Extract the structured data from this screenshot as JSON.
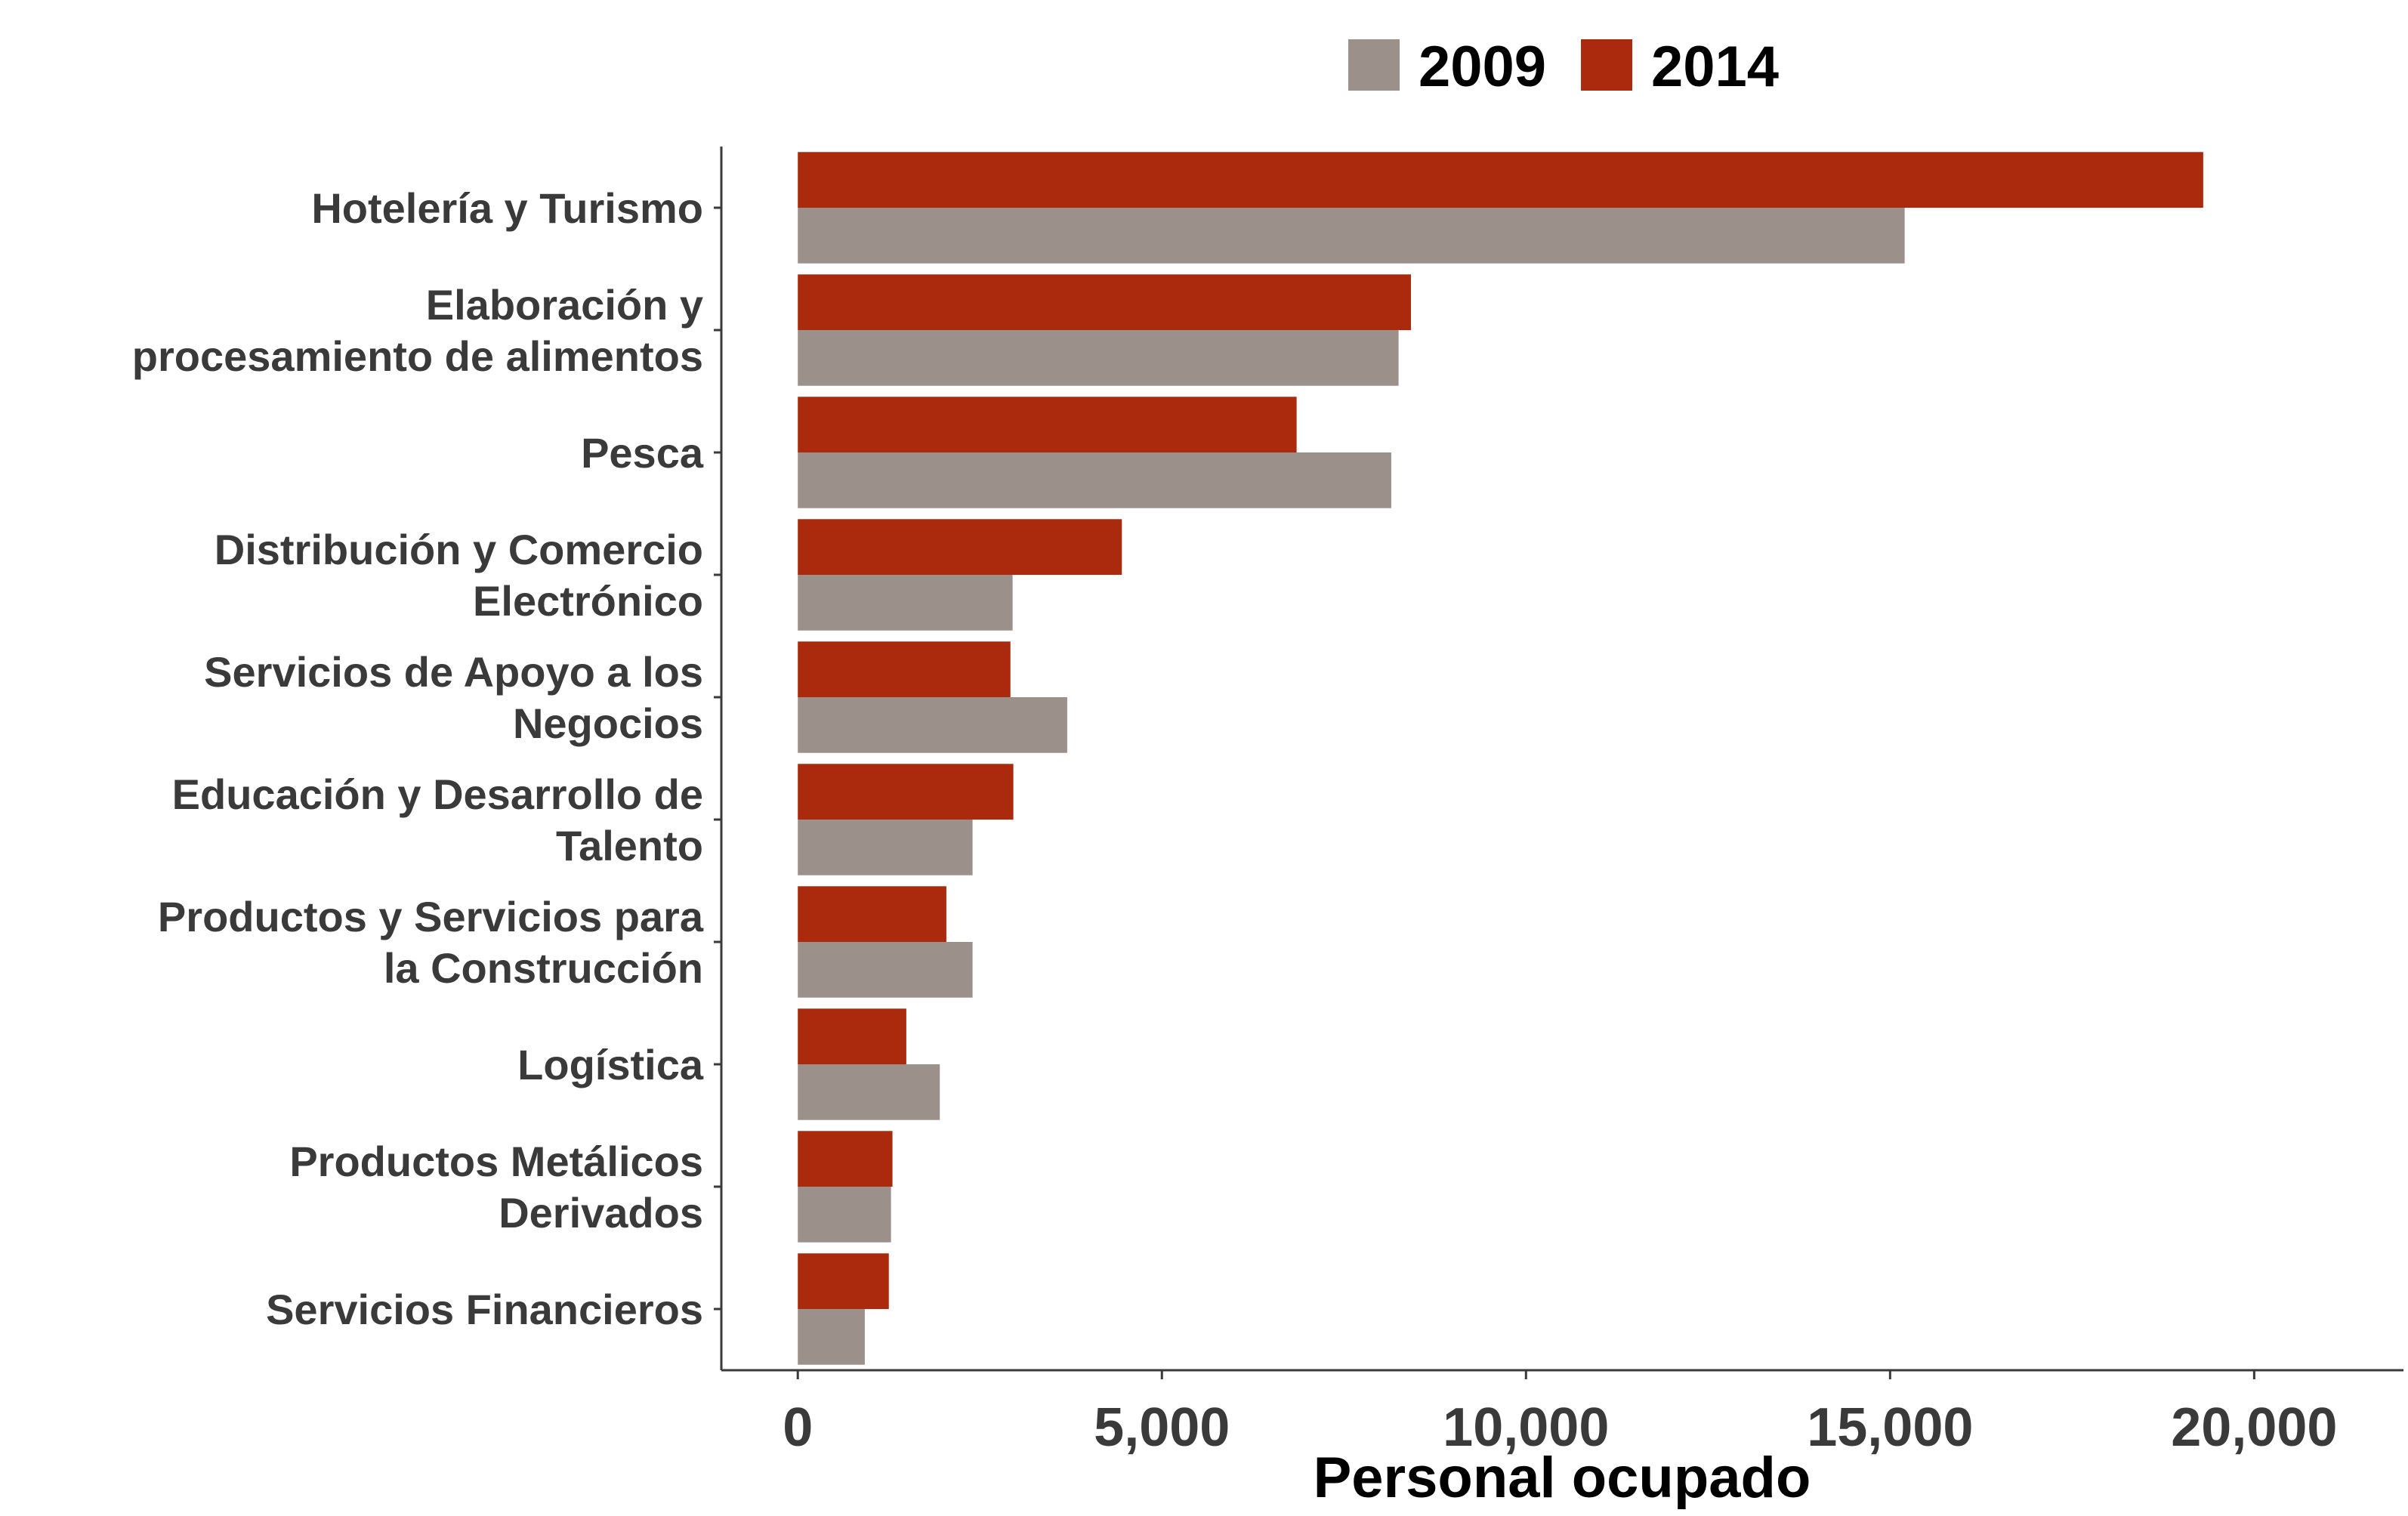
{
  "chart_data": {
    "type": "bar",
    "orientation": "horizontal",
    "categories": [
      [
        "Hotelería y Turismo"
      ],
      [
        "Elaboración y",
        "procesamiento de alimentos"
      ],
      [
        "Pesca"
      ],
      [
        "Distribución y Comercio",
        "Electrónico"
      ],
      [
        "Servicios de Apoyo a los",
        "Negocios"
      ],
      [
        "Educación y Desarrollo de",
        "Talento"
      ],
      [
        "Productos y Servicios para",
        "la Construcción"
      ],
      [
        "Logística"
      ],
      [
        "Productos Metálicos",
        "Derivados"
      ],
      [
        "Servicios Financieros"
      ]
    ],
    "series": [
      {
        "name": "2009",
        "color": "#9c908a",
        "values": [
          15200,
          8250,
          8150,
          2950,
          3700,
          2400,
          2400,
          1950,
          1280,
          920
        ]
      },
      {
        "name": "2014",
        "color": "#ab2a0e",
        "values": [
          19300,
          8420,
          6850,
          4450,
          2920,
          2960,
          2040,
          1490,
          1300,
          1250
        ]
      }
    ],
    "xlabel": "Personal ocupado",
    "ylabel": "",
    "xlim": [
      -1050,
      22050
    ],
    "xticks": [
      0,
      5000,
      10000,
      15000,
      20000
    ],
    "xtick_labels": [
      "0",
      "5,000",
      "10,000",
      "15,000",
      "20,000"
    ],
    "legend_position": "top",
    "grid": false
  }
}
